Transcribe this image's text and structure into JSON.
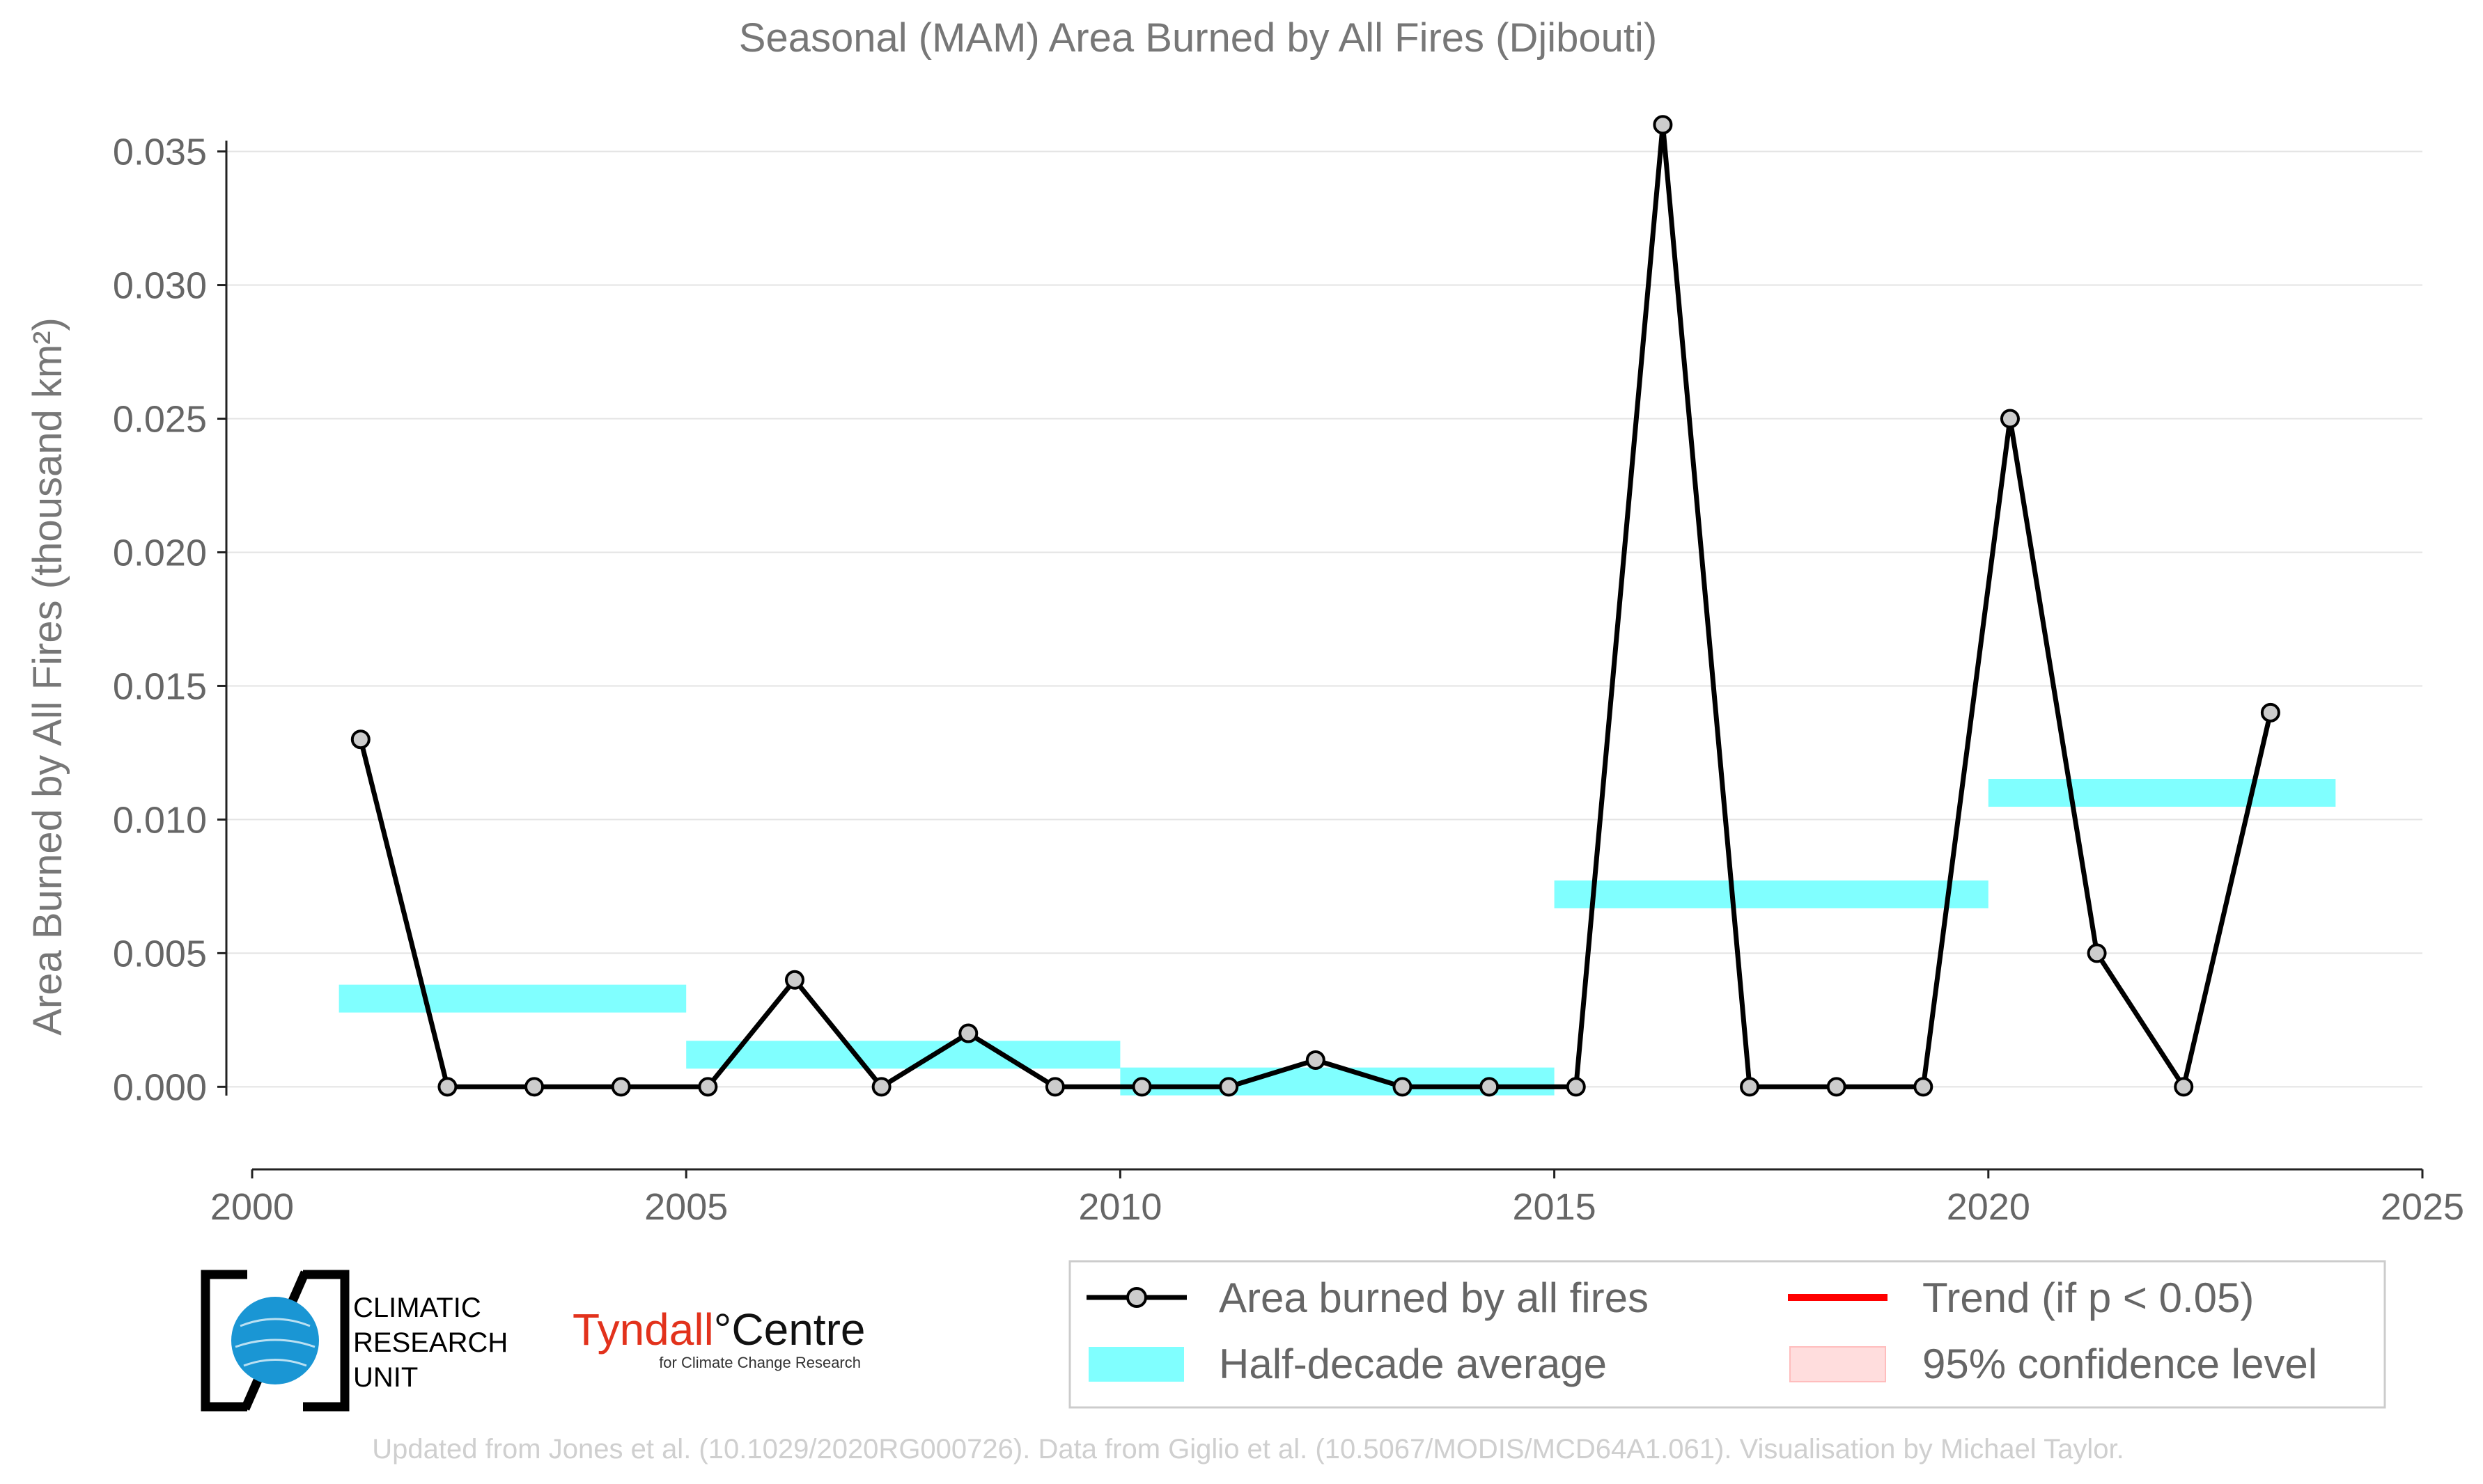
{
  "chart_data": {
    "type": "line",
    "title": "Seasonal (MAM) Area Burned by All Fires (Djibouti)",
    "ylabel": "Area Burned by All Fires (thousand km²)",
    "xlabel": "",
    "xlim": [
      2000,
      2025
    ],
    "ylim": [
      -0.0027,
      0.0365
    ],
    "x_ticks": [
      "2000",
      "2005",
      "2010",
      "2015",
      "2020",
      "2025"
    ],
    "y_ticks": [
      "0.000",
      "0.005",
      "0.010",
      "0.015",
      "0.020",
      "0.025",
      "0.030",
      "0.035"
    ],
    "grid": "horizontal",
    "series": [
      {
        "name": "Area burned by all fires",
        "color": "#000000",
        "marker_color": "#cccccc",
        "x": [
          2001.25,
          2002.25,
          2003.25,
          2004.25,
          2005.25,
          2006.25,
          2007.25,
          2008.25,
          2009.25,
          2010.25,
          2011.25,
          2012.25,
          2013.25,
          2014.25,
          2015.25,
          2016.25,
          2017.25,
          2018.25,
          2019.25,
          2020.25,
          2021.25,
          2022.25,
          2023.25
        ],
        "values": [
          0.013,
          0.0,
          0.0,
          0.0,
          0.0,
          0.004,
          0.0,
          0.002,
          0.0,
          0.0,
          0.0,
          0.001,
          0.0,
          0.0,
          0.0,
          0.036,
          0.0,
          0.0,
          0.0,
          0.025,
          0.005,
          0.0,
          0.014
        ]
      }
    ],
    "half_decade_average": {
      "name": "Half-decade average",
      "color": "#80ffff",
      "segments": [
        {
          "x_start": 2001,
          "x_end": 2005,
          "value": 0.0033
        },
        {
          "x_start": 2005,
          "x_end": 2010,
          "value": 0.0012
        },
        {
          "x_start": 2010,
          "x_end": 2015,
          "value": 0.0002
        },
        {
          "x_start": 2015,
          "x_end": 2020,
          "value": 0.0072
        },
        {
          "x_start": 2020,
          "x_end": 2024,
          "value": 0.011
        }
      ]
    },
    "legend": {
      "placement": "bottom-right",
      "entries": [
        {
          "label": "Area burned by all fires",
          "kind": "line-marker",
          "color": "#000000"
        },
        {
          "label": "Trend (if p < 0.05)",
          "kind": "line",
          "color": "#ff0000"
        },
        {
          "label": "Half-decade average",
          "kind": "band",
          "color": "#80ffff"
        },
        {
          "label": "95% confidence level",
          "kind": "band",
          "color": "#ffdddd"
        }
      ]
    }
  },
  "logos": {
    "cru": [
      "CLIMATIC",
      "RESEARCH",
      "UNIT"
    ],
    "tyndall_main": "Tyndall",
    "tyndall_rest": "°Centre",
    "tyndall_sub": "for Climate Change Research"
  },
  "footer": "Updated from Jones et al. (10.1029/2020RG000726). Data from Giglio et al. (10.5067/MODIS/MCD64A1.061). Visualisation by Michael Taylor."
}
